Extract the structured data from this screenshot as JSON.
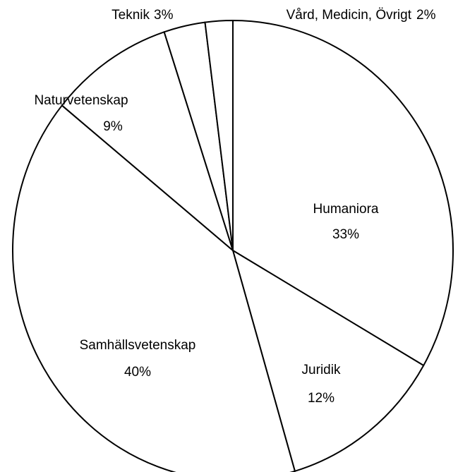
{
  "chart_data": {
    "type": "pie",
    "categories": [
      "Humaniora",
      "Juridik",
      "Samhällsvetenskap",
      "Naturvetenskap",
      "Teknik",
      "Vård, Medicin, Övrigt"
    ],
    "values": [
      33,
      12,
      40,
      9,
      3,
      2
    ],
    "value_labels": [
      "33%",
      "12%",
      "40%",
      "9%",
      "3%",
      "2%"
    ],
    "color": "#ffffff"
  }
}
